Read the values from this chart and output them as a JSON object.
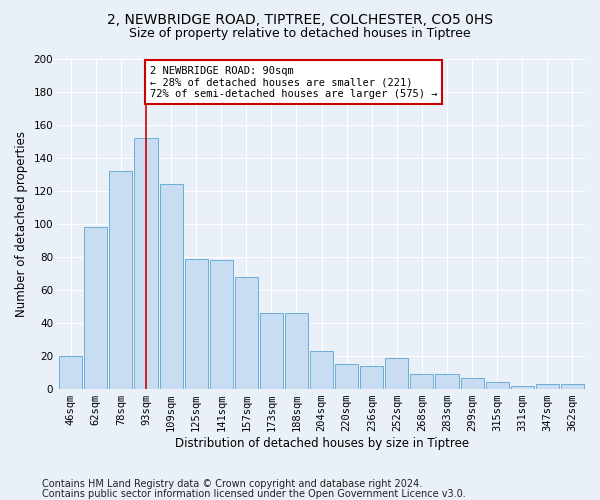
{
  "title1": "2, NEWBRIDGE ROAD, TIPTREE, COLCHESTER, CO5 0HS",
  "title2": "Size of property relative to detached houses in Tiptree",
  "xlabel": "Distribution of detached houses by size in Tiptree",
  "ylabel": "Number of detached properties",
  "categories": [
    "46sqm",
    "62sqm",
    "78sqm",
    "93sqm",
    "109sqm",
    "125sqm",
    "141sqm",
    "157sqm",
    "173sqm",
    "188sqm",
    "204sqm",
    "220sqm",
    "236sqm",
    "252sqm",
    "268sqm",
    "283sqm",
    "299sqm",
    "315sqm",
    "331sqm",
    "347sqm",
    "362sqm"
  ],
  "values": [
    20,
    98,
    132,
    152,
    124,
    79,
    78,
    68,
    46,
    46,
    23,
    15,
    14,
    19,
    9,
    9,
    7,
    4,
    2,
    3,
    3
  ],
  "bar_color": "#c9ddf2",
  "bar_edge_color": "#6baed6",
  "vline_x": 3,
  "vline_color": "#cc0000",
  "annotation_text": "2 NEWBRIDGE ROAD: 90sqm\n← 28% of detached houses are smaller (221)\n72% of semi-detached houses are larger (575) →",
  "annotation_box_color": "#ffffff",
  "annotation_box_edge": "#cc0000",
  "ylim": [
    0,
    200
  ],
  "yticks": [
    0,
    20,
    40,
    60,
    80,
    100,
    120,
    140,
    160,
    180,
    200
  ],
  "footer1": "Contains HM Land Registry data © Crown copyright and database right 2024.",
  "footer2": "Contains public sector information licensed under the Open Government Licence v3.0.",
  "background_color": "#eaf0f8",
  "grid_color": "#ffffff",
  "title1_fontsize": 10,
  "title2_fontsize": 9,
  "xlabel_fontsize": 8.5,
  "ylabel_fontsize": 8.5,
  "tick_fontsize": 7.5,
  "footer_fontsize": 7
}
